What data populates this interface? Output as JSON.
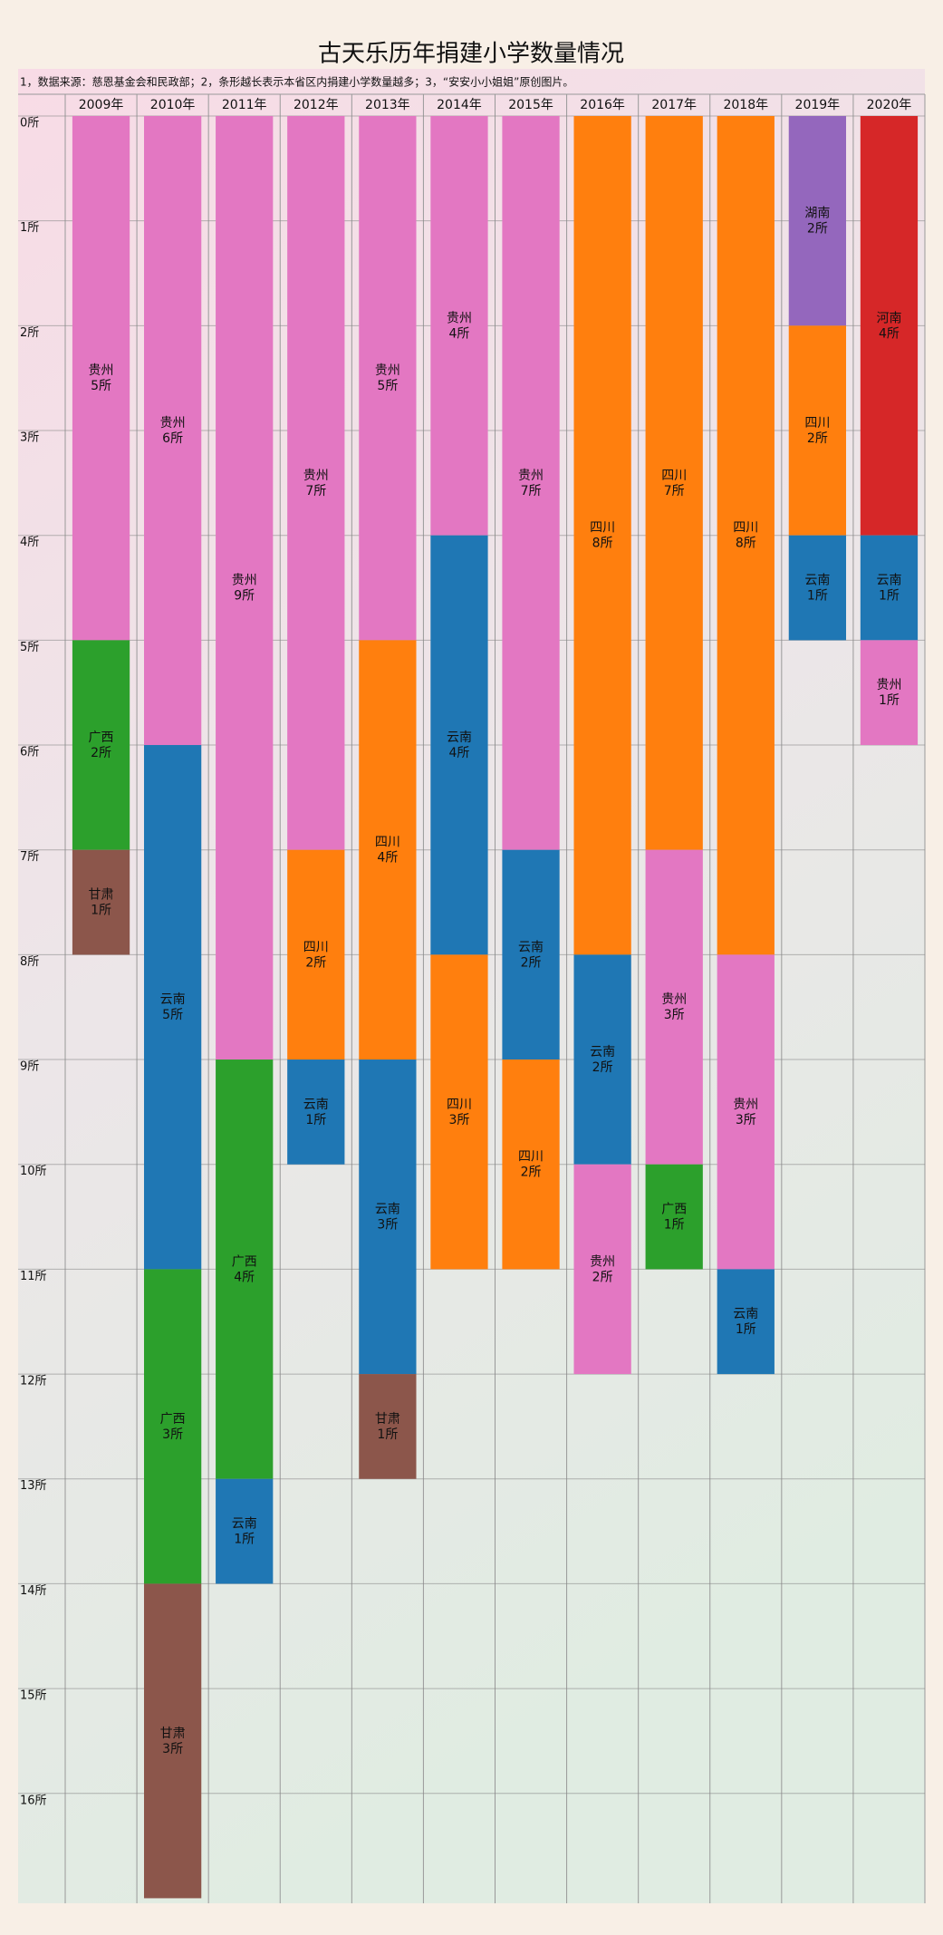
{
  "chart_data": {
    "type": "stacked-bar",
    "title": "古天乐历年捐建小学数量情况",
    "subtitle": "1，数据来源：慈恩基金会和民政部；2，条形越长表示本省区内捐建小学数量越多；3，“安安小小姐姐”原创图片。",
    "categories": [
      "2009年",
      "2010年",
      "2011年",
      "2012年",
      "2013年",
      "2014年",
      "2015年",
      "2016年",
      "2017年",
      "2018年",
      "2019年",
      "2020年"
    ],
    "stacks": [
      [
        {
          "name": "贵州",
          "color": "#e377c2",
          "value": 5,
          "value_label": "5所"
        },
        {
          "name": "广西",
          "color": "#2ca02c",
          "value": 2,
          "value_label": "2所"
        },
        {
          "name": "甘肃",
          "color": "#8c564b",
          "value": 1,
          "value_label": "1所"
        }
      ],
      [
        {
          "name": "贵州",
          "color": "#e377c2",
          "value": 6,
          "value_label": "6所"
        },
        {
          "name": "云南",
          "color": "#1f77b4",
          "value": 5,
          "value_label": "5所"
        },
        {
          "name": "广西",
          "color": "#2ca02c",
          "value": 3,
          "value_label": "3所"
        },
        {
          "name": "甘肃",
          "color": "#8c564b",
          "value": 3,
          "value_label": "3所"
        }
      ],
      [
        {
          "name": "贵州",
          "color": "#e377c2",
          "value": 9,
          "value_label": "9所"
        },
        {
          "name": "广西",
          "color": "#2ca02c",
          "value": 4,
          "value_label": "4所"
        },
        {
          "name": "云南",
          "color": "#1f77b4",
          "value": 1,
          "value_label": "1所"
        }
      ],
      [
        {
          "name": "贵州",
          "color": "#e377c2",
          "value": 7,
          "value_label": "7所"
        },
        {
          "name": "四川",
          "color": "#ff7f0e",
          "value": 2,
          "value_label": "2所"
        },
        {
          "name": "云南",
          "color": "#1f77b4",
          "value": 1,
          "value_label": "1所"
        }
      ],
      [
        {
          "name": "贵州",
          "color": "#e377c2",
          "value": 5,
          "value_label": "5所"
        },
        {
          "name": "四川",
          "color": "#ff7f0e",
          "value": 4,
          "value_label": "4所"
        },
        {
          "name": "云南",
          "color": "#1f77b4",
          "value": 3,
          "value_label": "3所"
        },
        {
          "name": "甘肃",
          "color": "#8c564b",
          "value": 1,
          "value_label": "1所"
        }
      ],
      [
        {
          "name": "贵州",
          "color": "#e377c2",
          "value": 4,
          "value_label": "4所"
        },
        {
          "name": "云南",
          "color": "#1f77b4",
          "value": 4,
          "value_label": "4所"
        },
        {
          "name": "四川",
          "color": "#ff7f0e",
          "value": 3,
          "value_label": "3所"
        }
      ],
      [
        {
          "name": "贵州",
          "color": "#e377c2",
          "value": 7,
          "value_label": "7所"
        },
        {
          "name": "云南",
          "color": "#1f77b4",
          "value": 2,
          "value_label": "2所"
        },
        {
          "name": "四川",
          "color": "#ff7f0e",
          "value": 2,
          "value_label": "2所"
        }
      ],
      [
        {
          "name": "四川",
          "color": "#ff7f0e",
          "value": 8,
          "value_label": "8所"
        },
        {
          "name": "云南",
          "color": "#1f77b4",
          "value": 2,
          "value_label": "2所"
        },
        {
          "name": "贵州",
          "color": "#e377c2",
          "value": 2,
          "value_label": "2所"
        }
      ],
      [
        {
          "name": "四川",
          "color": "#ff7f0e",
          "value": 7,
          "value_label": "7所"
        },
        {
          "name": "贵州",
          "color": "#e377c2",
          "value": 3,
          "value_label": "3所"
        },
        {
          "name": "广西",
          "color": "#2ca02c",
          "value": 1,
          "value_label": "1所"
        }
      ],
      [
        {
          "name": "四川",
          "color": "#ff7f0e",
          "value": 8,
          "value_label": "8所"
        },
        {
          "name": "贵州",
          "color": "#e377c2",
          "value": 3,
          "value_label": "3所"
        },
        {
          "name": "云南",
          "color": "#1f77b4",
          "value": 1,
          "value_label": "1所"
        }
      ],
      [
        {
          "name": "湖南",
          "color": "#9467bd",
          "value": 2,
          "value_label": "2所"
        },
        {
          "name": "四川",
          "color": "#ff7f0e",
          "value": 2,
          "value_label": "2所"
        },
        {
          "name": "云南",
          "color": "#1f77b4",
          "value": 1,
          "value_label": "1所"
        }
      ],
      [
        {
          "name": "河南",
          "color": "#d62728",
          "value": 4,
          "value_label": "4所"
        },
        {
          "name": "云南",
          "color": "#1f77b4",
          "value": 1,
          "value_label": "1所"
        },
        {
          "name": "贵州",
          "color": "#e377c2",
          "value": 1,
          "value_label": "1所"
        }
      ]
    ],
    "ylim": [
      0,
      17.1
    ],
    "yticks": [
      {
        "value": 0,
        "label": "0所"
      },
      {
        "value": 1,
        "label": "1所"
      },
      {
        "value": 2,
        "label": "2所"
      },
      {
        "value": 3,
        "label": "3所"
      },
      {
        "value": 4,
        "label": "4所"
      },
      {
        "value": 5,
        "label": "5所"
      },
      {
        "value": 6,
        "label": "6所"
      },
      {
        "value": 7,
        "label": "7所"
      },
      {
        "value": 8,
        "label": "8所"
      },
      {
        "value": 9,
        "label": "9所"
      },
      {
        "value": 10,
        "label": "10所"
      },
      {
        "value": 11,
        "label": "11所"
      },
      {
        "value": 12,
        "label": "12所"
      },
      {
        "value": 13,
        "label": "13所"
      },
      {
        "value": 14,
        "label": "14所"
      },
      {
        "value": 15,
        "label": "15所"
      },
      {
        "value": 16,
        "label": "16所"
      }
    ],
    "grid": true
  }
}
